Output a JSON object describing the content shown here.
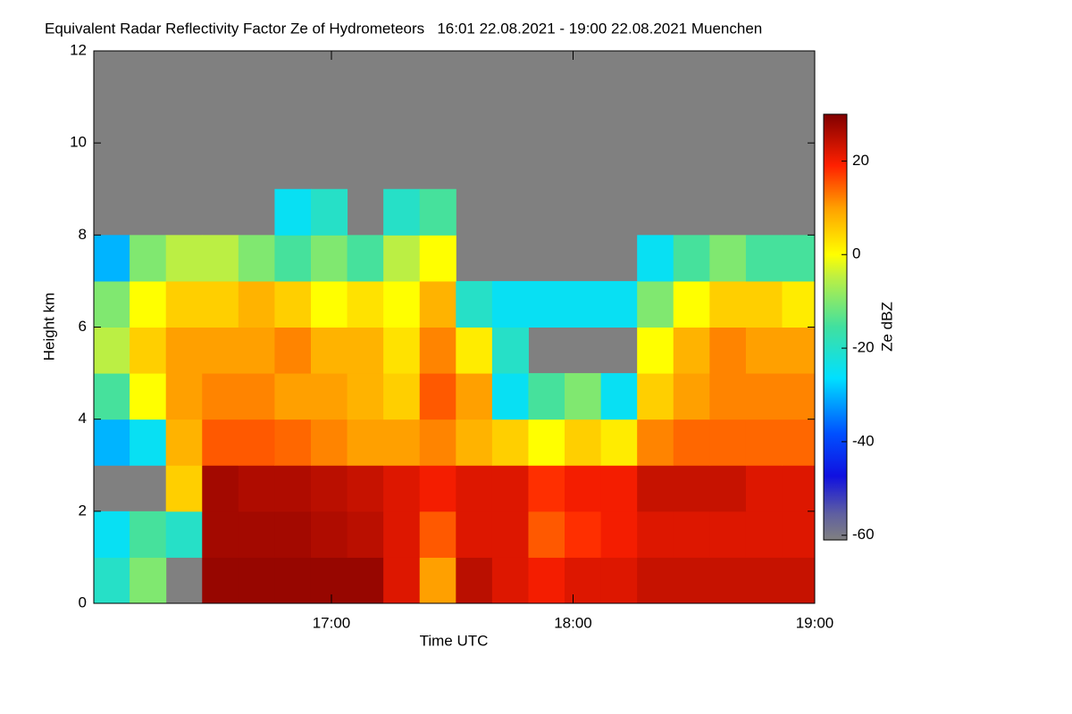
{
  "chart_data": {
    "type": "heatmap",
    "title": "Equivalent Radar Reflectivity Factor Ze of Hydrometeors   16:01 22.08.2021 - 19:00 22.08.2021 Muenchen",
    "x_label": "Time UTC",
    "y_label": "Height km",
    "colorbar_label": "Ze dBZ",
    "xlim": [
      16.0167,
      19.0
    ],
    "xticks": [
      {
        "value": 17,
        "label": "17:00"
      },
      {
        "value": 18,
        "label": "18:00"
      },
      {
        "value": 19,
        "label": "19:00"
      }
    ],
    "ylim": [
      0,
      12
    ],
    "yticks": [
      0,
      2,
      4,
      6,
      8,
      10,
      12
    ],
    "clim": [
      -61,
      30
    ],
    "cticks": [
      -60,
      -40,
      -20,
      0,
      20
    ],
    "missing_color": "#808080",
    "colorscale": [
      [
        0,
        "#808080"
      ],
      [
        0.06,
        "#6060a0"
      ],
      [
        0.15,
        "#1010e0"
      ],
      [
        0.25,
        "#0050ff"
      ],
      [
        0.38,
        "#00e0ff"
      ],
      [
        0.5,
        "#40e0a0"
      ],
      [
        0.62,
        "#c0f040"
      ],
      [
        0.67,
        "#ffff00"
      ],
      [
        0.78,
        "#ffa000"
      ],
      [
        0.88,
        "#ff2000"
      ],
      [
        1,
        "#800000"
      ]
    ],
    "x": [
      16.09,
      16.24,
      16.39,
      16.54,
      16.69,
      16.84,
      16.99,
      17.14,
      17.29,
      17.44,
      17.59,
      17.74,
      17.89,
      18.04,
      18.19,
      18.34,
      18.49,
      18.64,
      18.79,
      18.94
    ],
    "y": [
      0.5,
      1.5,
      2.5,
      3.5,
      4.5,
      5.5,
      6.5,
      7.5,
      8.5,
      9.5,
      10.5,
      11.5
    ],
    "z": [
      [
        -20,
        -10,
        null,
        28,
        28,
        28,
        28,
        28,
        22,
        10,
        25,
        22,
        20,
        22,
        22,
        24,
        24,
        24,
        24,
        24
      ],
      [
        -25,
        -15,
        -20,
        27,
        27,
        27,
        26,
        25,
        22,
        15,
        22,
        22,
        15,
        18,
        20,
        22,
        22,
        22,
        22,
        22
      ],
      [
        null,
        null,
        5,
        27,
        26,
        26,
        25,
        24,
        22,
        20,
        22,
        22,
        18,
        20,
        20,
        24,
        24,
        24,
        22,
        22
      ],
      [
        -30,
        -25,
        8,
        15,
        15,
        14,
        12,
        10,
        10,
        12,
        8,
        5,
        0,
        5,
        2,
        12,
        14,
        14,
        14,
        14
      ],
      [
        -15,
        0,
        10,
        12,
        12,
        10,
        10,
        8,
        5,
        15,
        10,
        -25,
        -15,
        -10,
        -25,
        5,
        10,
        12,
        12,
        12
      ],
      [
        -5,
        5,
        10,
        10,
        10,
        12,
        8,
        8,
        3,
        12,
        2,
        -20,
        null,
        null,
        null,
        0,
        8,
        12,
        10,
        10
      ],
      [
        -10,
        0,
        5,
        5,
        8,
        5,
        0,
        3,
        0,
        8,
        -20,
        -25,
        -25,
        -25,
        -25,
        -10,
        0,
        5,
        5,
        2
      ],
      [
        -30,
        -10,
        -5,
        -5,
        -10,
        -15,
        -10,
        -15,
        -5,
        0,
        null,
        null,
        null,
        null,
        null,
        -25,
        -15,
        -10,
        -15,
        -15
      ],
      [
        null,
        null,
        null,
        null,
        null,
        -25,
        -20,
        null,
        -20,
        -15,
        null,
        null,
        null,
        null,
        null,
        null,
        null,
        null,
        null,
        null
      ],
      [
        null,
        null,
        null,
        null,
        null,
        null,
        null,
        null,
        null,
        null,
        null,
        null,
        null,
        null,
        null,
        null,
        null,
        null,
        null,
        null
      ],
      [
        null,
        null,
        null,
        null,
        null,
        null,
        null,
        null,
        null,
        null,
        null,
        null,
        null,
        null,
        null,
        null,
        null,
        null,
        null,
        null
      ],
      [
        null,
        null,
        null,
        null,
        null,
        null,
        null,
        null,
        null,
        null,
        null,
        null,
        null,
        null,
        null,
        null,
        null,
        null,
        null,
        null
      ]
    ]
  }
}
